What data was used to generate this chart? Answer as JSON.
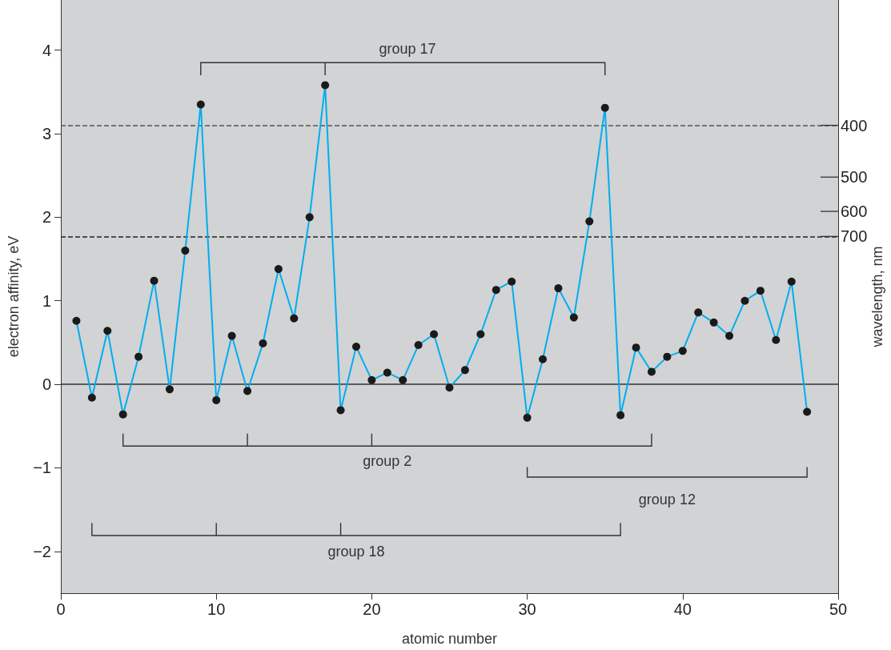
{
  "chart_data": {
    "type": "line",
    "xlabel": "atomic number",
    "ylabel": "electron affinity, eV",
    "y2label": "wavelength, nm",
    "x": [
      1,
      2,
      3,
      4,
      5,
      6,
      7,
      8,
      9,
      10,
      11,
      12,
      13,
      14,
      15,
      16,
      17,
      18,
      19,
      20,
      21,
      22,
      23,
      24,
      25,
      26,
      27,
      28,
      29,
      30,
      31,
      32,
      33,
      34,
      35,
      36,
      37,
      38,
      39,
      40,
      41,
      42,
      43,
      44,
      45,
      46,
      47,
      48
    ],
    "series": [
      {
        "color": "#00aeef",
        "values": [
          0.76,
          -0.16,
          0.64,
          -0.36,
          0.33,
          1.24,
          -0.06,
          1.6,
          3.35,
          -0.19,
          0.58,
          -0.08,
          0.49,
          1.38,
          0.79,
          2.0,
          3.58,
          -0.31,
          0.45,
          0.05,
          0.14,
          0.05,
          0.47,
          0.6,
          -0.04,
          0.17,
          0.6,
          1.13,
          1.23,
          -0.4,
          0.3,
          1.15,
          0.8,
          1.95,
          3.31,
          -0.37,
          0.44,
          0.15,
          0.33,
          0.4,
          0.86,
          0.74,
          0.58,
          1.0,
          1.12,
          0.53,
          1.23,
          -0.33
        ]
      }
    ],
    "xlim": [
      0,
      50
    ],
    "xticks": [
      0,
      10,
      20,
      30,
      40,
      50
    ],
    "ylim": [
      -2.5,
      4.6
    ],
    "yticks": [
      {
        "value": -2,
        "label": "−2"
      },
      {
        "value": -1,
        "label": "−1"
      },
      0,
      1,
      2,
      3,
      4
    ],
    "ref_lines": [
      {
        "axis": "y",
        "value": 3.1,
        "color": "#555555",
        "line_style": "dashed"
      },
      {
        "axis": "y",
        "value": 1.77,
        "color": "#222222",
        "line_style": "dashed"
      },
      {
        "axis": "y",
        "value": 0,
        "color": "#333333",
        "line_style": "solid"
      }
    ],
    "annotations": [
      "group 17",
      "group 2",
      "group 12",
      "group 18",
      "400",
      "500",
      "600",
      "700"
    ],
    "marker": "circle",
    "line_style": "solid",
    "grid": false
  }
}
